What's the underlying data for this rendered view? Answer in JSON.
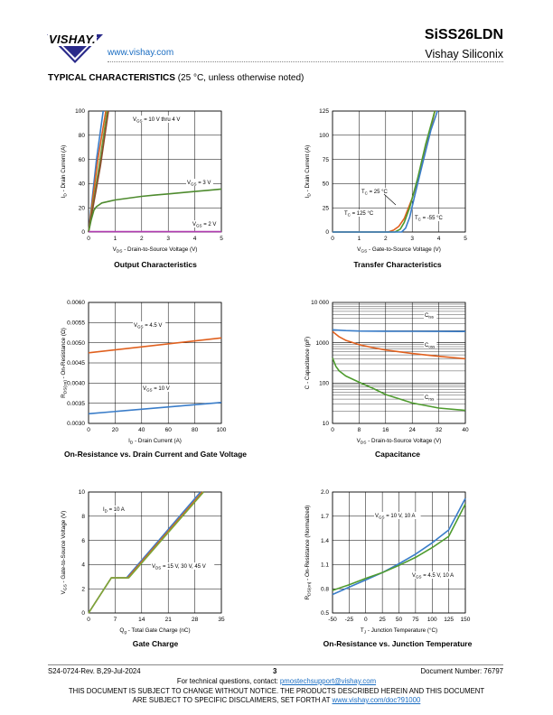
{
  "header": {
    "logo_text": "VISHAY.",
    "url": "www.vishay.com",
    "part_number": "SiSS26LDN",
    "company": "Vishay Siliconix"
  },
  "section": {
    "title": "TYPICAL CHARACTERISTICS",
    "note": "(25 °C, unless otherwise noted)"
  },
  "chart_data": [
    {
      "id": "output",
      "type": "line",
      "title": "Output Characteristics",
      "xlabel": "V_DS - Drain-to-Source Voltage (V)",
      "ylabel": "I_D - Drain Current (A)",
      "xlim": [
        0,
        5
      ],
      "ylim": [
        0,
        100
      ],
      "xticks": [
        0,
        1,
        2,
        3,
        4,
        5
      ],
      "yticks": [
        0,
        20,
        40,
        60,
        80,
        100
      ],
      "annotations": [
        "VGS = 10 V thru 4 V",
        "VGS = 3 V",
        "VGS = 2 V"
      ],
      "series": [
        {
          "name": "VGS = 10 V",
          "color": "#3a7dc9",
          "x": [
            0,
            0.3,
            0.55
          ],
          "y": [
            0,
            60,
            100
          ]
        },
        {
          "name": "VGS = 4.5 V",
          "color": "#e0601e",
          "x": [
            0,
            0.35,
            0.65
          ],
          "y": [
            0,
            60,
            100
          ]
        },
        {
          "name": "VGS = 4 V",
          "color": "#6a9a3a",
          "x": [
            0,
            0.4,
            0.7
          ],
          "y": [
            0,
            55,
            100
          ]
        },
        {
          "name": "VGS = 3.5 V",
          "color": "#8b4a2a",
          "x": [
            0,
            0.45,
            0.75
          ],
          "y": [
            0,
            55,
            100
          ]
        },
        {
          "name": "VGS = 3 V",
          "color": "#4e8b2e",
          "x": [
            0,
            0.1,
            0.2,
            0.3,
            0.5,
            0.8,
            1,
            1.5,
            2,
            2.5,
            3,
            3.5,
            4,
            4.5,
            5
          ],
          "y": [
            0,
            10,
            18,
            21,
            24,
            25.5,
            26.5,
            28,
            29.5,
            30.5,
            31.5,
            32.5,
            33.5,
            34.5,
            35.5
          ]
        },
        {
          "name": "VGS = 2 V",
          "color": "#b03bb0",
          "x": [
            0,
            5
          ],
          "y": [
            0.3,
            0.3
          ]
        }
      ]
    },
    {
      "id": "transfer",
      "type": "line",
      "title": "Transfer Characteristics",
      "xlabel": "V_GS - Gate-to-Source Voltage (V)",
      "ylabel": "I_D - Drain Current (A)",
      "xlim": [
        0,
        5
      ],
      "ylim": [
        0,
        125
      ],
      "xticks": [
        0,
        1,
        2,
        3,
        4,
        5
      ],
      "yticks": [
        0,
        25,
        50,
        75,
        100,
        125
      ],
      "annotations": [
        "TC = 25 °C",
        "TC = 125 °C",
        "TC = -55 °C"
      ],
      "series": [
        {
          "name": "TC = 125 °C",
          "color": "#e0601e",
          "x": [
            0,
            2.1,
            2.3,
            2.5,
            2.7,
            3,
            3.3,
            3.6,
            3.85
          ],
          "y": [
            0,
            0,
            2,
            6,
            14,
            35,
            62,
            95,
            125
          ]
        },
        {
          "name": "TC = 25 °C",
          "color": "#4e9b2e",
          "x": [
            0,
            2.35,
            2.55,
            2.7,
            2.9,
            3.2,
            3.5,
            3.85
          ],
          "y": [
            0,
            0,
            3,
            10,
            25,
            55,
            90,
            125
          ]
        },
        {
          "name": "TC = -55 °C",
          "color": "#3a7dc9",
          "x": [
            0,
            2.6,
            2.75,
            2.9,
            3.1,
            3.4,
            3.7,
            3.95
          ],
          "y": [
            0,
            0,
            4,
            15,
            38,
            72,
            105,
            125
          ]
        }
      ]
    },
    {
      "id": "rdson_id",
      "type": "line",
      "title": "On-Resistance vs. Drain Current and Gate Voltage",
      "xlabel": "I_D - Drain Current (A)",
      "ylabel": "R_DS(on) - On-Resistance (Ω)",
      "xlim": [
        0,
        100
      ],
      "ylim": [
        0.003,
        0.006
      ],
      "xticks": [
        0,
        20,
        40,
        60,
        80,
        100
      ],
      "yticks": [
        0.003,
        0.0035,
        0.004,
        0.0045,
        0.005,
        0.0055,
        0.006
      ],
      "ytick_labels": [
        "0.0030",
        "0.0035",
        "0.0040",
        "0.0045",
        "0.0050",
        "0.0055",
        "0.0060"
      ],
      "annotations": [
        "VGS = 4.5 V",
        "VGS = 10 V"
      ],
      "series": [
        {
          "name": "VGS = 4.5 V",
          "color": "#e0601e",
          "x": [
            0,
            100
          ],
          "y": [
            0.00475,
            0.00512
          ]
        },
        {
          "name": "VGS = 10 V",
          "color": "#3a7dc9",
          "x": [
            0,
            100
          ],
          "y": [
            0.00324,
            0.00352
          ]
        }
      ]
    },
    {
      "id": "capacitance",
      "type": "line",
      "title": "Capacitance",
      "xlabel": "V_DS - Drain-to-Source Voltage (V)",
      "ylabel": "C - Capacitance (pF)",
      "xlim": [
        0,
        40
      ],
      "ylim": [
        10,
        10000
      ],
      "yscale": "log",
      "xticks": [
        0,
        8,
        16,
        24,
        32,
        40
      ],
      "yticks": [
        10,
        100,
        1000,
        10000
      ],
      "ytick_labels": [
        "10",
        "100",
        "1000",
        "10 000"
      ],
      "annotations": [
        "Ciss",
        "Coss",
        "Crss"
      ],
      "series": [
        {
          "name": "Ciss",
          "color": "#3a7dc9",
          "x": [
            0,
            4,
            8,
            16,
            24,
            32,
            40
          ],
          "y": [
            2100,
            2000,
            1950,
            1930,
            1920,
            1910,
            1900
          ]
        },
        {
          "name": "Coss",
          "color": "#e0601e",
          "x": [
            0,
            2,
            4,
            8,
            12,
            16,
            24,
            32,
            40
          ],
          "y": [
            1900,
            1400,
            1150,
            900,
            760,
            660,
            540,
            460,
            400
          ]
        },
        {
          "name": "Crss",
          "color": "#4e9b2e",
          "x": [
            0,
            1,
            2,
            4,
            8,
            12,
            16,
            24,
            32,
            40
          ],
          "y": [
            420,
            260,
            200,
            150,
            105,
            75,
            52,
            32,
            24,
            21
          ]
        }
      ]
    },
    {
      "id": "gate_charge",
      "type": "line",
      "title": "Gate Charge",
      "xlabel": "Q_g - Total Gate Charge (nC)",
      "ylabel": "V_GS - Gate-to-Source Voltage (V)",
      "xlim": [
        0,
        35
      ],
      "ylim": [
        0,
        10
      ],
      "xticks": [
        0,
        7,
        14,
        21,
        28,
        35
      ],
      "yticks": [
        0,
        2,
        4,
        6,
        8,
        10
      ],
      "annotations": [
        "ID = 10 A",
        "VDS = 15 V, 30 V, 45 V"
      ],
      "series": [
        {
          "name": "VDS = 15 V",
          "color": "#3a7dc9",
          "x": [
            0,
            6,
            6.6,
            10,
            29.5
          ],
          "y": [
            0,
            2.9,
            2.9,
            2.9,
            10
          ]
        },
        {
          "name": "VDS = 30 V",
          "color": "#e0601e",
          "x": [
            0,
            6,
            6.6,
            10.3,
            30
          ],
          "y": [
            0,
            2.9,
            2.9,
            2.9,
            10
          ]
        },
        {
          "name": "VDS = 45 V",
          "color": "#7aa83a",
          "x": [
            0,
            6,
            6.6,
            10.6,
            30.3
          ],
          "y": [
            0,
            2.9,
            2.9,
            2.9,
            10
          ]
        }
      ]
    },
    {
      "id": "rdson_tj",
      "type": "line",
      "title": "On-Resistance vs. Junction Temperature",
      "xlabel": "T_J - Junction Temperature (°C)",
      "ylabel": "R_DS(on) - On-Resistance (Normalized)",
      "xlim": [
        -50,
        150
      ],
      "ylim": [
        0.5,
        2.0
      ],
      "xticks": [
        -50,
        -25,
        0,
        25,
        50,
        75,
        100,
        125,
        150
      ],
      "yticks": [
        0.5,
        0.8,
        1.1,
        1.4,
        1.7,
        2.0
      ],
      "ytick_labels": [
        "0.5",
        "0.8",
        "1.1",
        "1.4",
        "1.7",
        "2.0"
      ],
      "annotations": [
        "VGS = 10 V, 10 A",
        "VGS = 4.5 V, 10 A"
      ],
      "series": [
        {
          "name": "VGS = 10 V, 10 A",
          "color": "#3a7dc9",
          "x": [
            -50,
            -25,
            0,
            25,
            50,
            75,
            100,
            125,
            150
          ],
          "y": [
            0.73,
            0.82,
            0.91,
            1.0,
            1.11,
            1.23,
            1.37,
            1.53,
            1.92
          ]
        },
        {
          "name": "VGS = 4.5 V, 10 A",
          "color": "#4e9b2e",
          "x": [
            -50,
            -25,
            0,
            25,
            50,
            75,
            100,
            125,
            150
          ],
          "y": [
            0.78,
            0.85,
            0.93,
            1.0,
            1.09,
            1.19,
            1.31,
            1.45,
            1.85
          ]
        }
      ]
    }
  ],
  "footer": {
    "revision": "S24-0724-Rev. B,29-Jul-2024",
    "page": "3",
    "doc_number": "Document Number: 76797",
    "tech_q": "For technical questions, contact:",
    "email": "pmostechsupport@vishay.com",
    "disclaimer1": "THIS DOCUMENT IS SUBJECT TO CHANGE WITHOUT NOTICE. THE PRODUCTS DESCRIBED HEREIN AND THIS DOCUMENT",
    "disclaimer2": "ARE SUBJECT TO SPECIFIC DISCLAIMERS, SET FORTH AT",
    "disclaimer_link": "www.vishay.com/doc?91000"
  }
}
